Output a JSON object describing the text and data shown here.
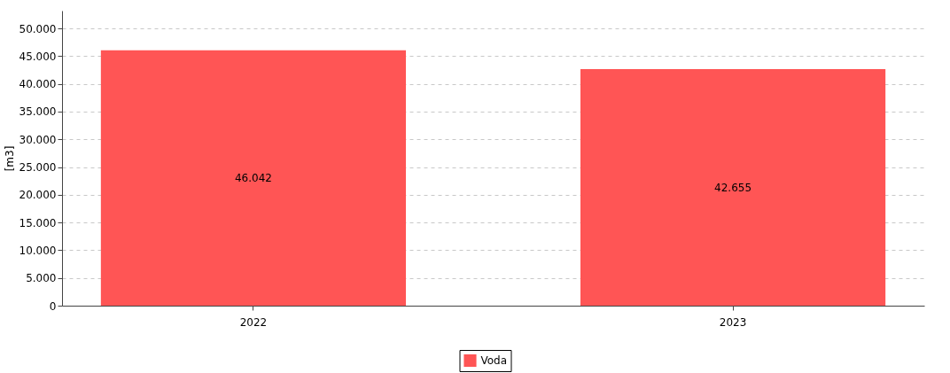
{
  "chart_data": {
    "type": "bar",
    "ylabel": "[m3]",
    "categories": [
      "2022",
      "2023"
    ],
    "series": [
      {
        "name": "Voda",
        "color": "#ff5555",
        "values": [
          46042,
          42655
        ]
      }
    ],
    "value_labels": [
      "46.042",
      "42.655"
    ],
    "ylim": [
      0,
      53200
    ],
    "yticks": [
      0,
      {
        "value": 5000,
        "label": "5.000"
      },
      {
        "value": 10000,
        "label": "10.000"
      },
      {
        "value": 15000,
        "label": "15.000"
      },
      {
        "value": 20000,
        "label": "20.000"
      },
      {
        "value": 25000,
        "label": "25.000"
      },
      {
        "value": 30000,
        "label": "30.000"
      },
      {
        "value": 35000,
        "label": "35.000"
      },
      {
        "value": 40000,
        "label": "40.000"
      },
      {
        "value": 45000,
        "label": "45.000"
      },
      {
        "value": 50000,
        "label": "50.000"
      }
    ],
    "grid": "y",
    "legend": "bottom"
  }
}
